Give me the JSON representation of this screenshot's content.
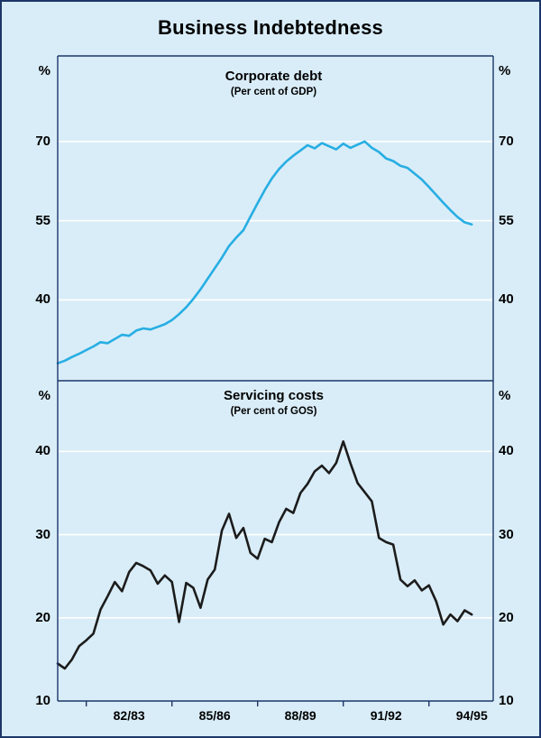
{
  "page": {
    "title": "Business Indebtedness"
  },
  "colors": {
    "background": "#d9edf8",
    "frame": "#1c3668",
    "grid": "#ffffff",
    "corporate_debt_line": "#27aee3",
    "servicing_costs_line": "#1c1c1c"
  },
  "x_axis": {
    "domain": [
      1980.5,
      1995.75
    ],
    "tick_labels": [
      {
        "label": "82/83",
        "x": 1983
      },
      {
        "label": "85/86",
        "x": 1986
      },
      {
        "label": "88/89",
        "x": 1989
      },
      {
        "label": "91/92",
        "x": 1992
      },
      {
        "label": "94/95",
        "x": 1995
      }
    ],
    "tick_marks": [
      1981.5,
      1984.5,
      1987.5,
      1990.5,
      1993.5
    ]
  },
  "chart_data": [
    {
      "type": "line",
      "panel": "top",
      "title": "Corporate debt",
      "subtitle": "(Per cent of GDP)",
      "ylabel": "%",
      "series_name": "corporate-debt-line",
      "series_color_key": "corporate_debt_line",
      "yticks": [
        40,
        55,
        70
      ],
      "ylim": [
        24.7,
        86.2
      ],
      "x_start": 1980.5,
      "x_step": 0.25,
      "xtick_labels": [
        "82/83",
        "85/86",
        "88/89",
        "91/92",
        "94/95"
      ],
      "grid": "horizontal",
      "legend": "none",
      "values": [
        28.0,
        28.5,
        29.2,
        29.8,
        30.5,
        31.2,
        32.0,
        31.8,
        32.6,
        33.4,
        33.2,
        34.2,
        34.6,
        34.4,
        34.9,
        35.4,
        36.2,
        37.3,
        38.6,
        40.2,
        42.0,
        44.0,
        46.0,
        48.0,
        50.2,
        51.8,
        53.2,
        55.8,
        58.3,
        60.8,
        63.0,
        64.8,
        66.2,
        67.3,
        68.3,
        69.3,
        68.7,
        69.7,
        69.1,
        68.5,
        69.6,
        68.8,
        69.4,
        70.0,
        68.8,
        68.0,
        66.8,
        66.3,
        65.4,
        65.0,
        63.9,
        62.8,
        61.4,
        59.9,
        58.4,
        57.0,
        55.7,
        54.7,
        54.3
      ]
    },
    {
      "type": "line",
      "panel": "bottom",
      "title": "Servicing costs",
      "subtitle": "(Per cent of GOS)",
      "ylabel": "%",
      "series_name": "servicing-costs-line",
      "series_color_key": "servicing_costs_line",
      "yticks": [
        10,
        20,
        30,
        40
      ],
      "ylim": [
        10,
        48.5
      ],
      "x_start": 1980.5,
      "x_step": 0.25,
      "xtick_labels": [
        "82/83",
        "85/86",
        "88/89",
        "91/92",
        "94/95"
      ],
      "grid": "horizontal",
      "legend": "none",
      "values": [
        14.5,
        13.9,
        15.0,
        16.6,
        17.3,
        18.1,
        21.0,
        22.6,
        24.3,
        23.2,
        25.5,
        26.6,
        26.2,
        25.7,
        24.1,
        25.1,
        24.3,
        19.5,
        24.2,
        23.6,
        21.2,
        24.6,
        25.8,
        30.5,
        32.5,
        29.6,
        30.8,
        27.8,
        27.1,
        29.5,
        29.1,
        31.5,
        33.1,
        32.6,
        35.0,
        36.1,
        37.6,
        38.3,
        37.4,
        38.6,
        41.2,
        38.6,
        36.2,
        35.1,
        34.0,
        29.6,
        29.1,
        28.8,
        24.6,
        23.8,
        24.5,
        23.3,
        23.9,
        22.0,
        19.2,
        20.4,
        19.6,
        20.9,
        20.4
      ]
    }
  ]
}
